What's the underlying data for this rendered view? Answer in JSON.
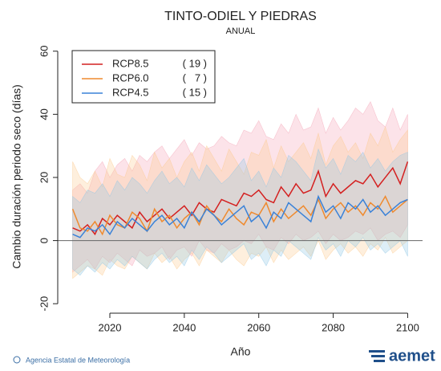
{
  "chart_data": {
    "type": "line",
    "title": "TINTO-ODIEL Y PIEDRAS",
    "subtitle": "ANUAL",
    "x_label": "Año",
    "y_label": "Cambio duración periodo seco (días)",
    "source": "Agencia Estatal de Meteorología",
    "logo": "aemet",
    "xlim": [
      2006,
      2104
    ],
    "ylim": [
      -23,
      64
    ],
    "xticks": [
      2020,
      2040,
      2060,
      2080,
      2100
    ],
    "yticks": [
      -20,
      0,
      20,
      40,
      60
    ],
    "zero_line": true,
    "x": [
      2010,
      2012,
      2014,
      2016,
      2018,
      2020,
      2022,
      2024,
      2026,
      2028,
      2030,
      2032,
      2034,
      2036,
      2038,
      2040,
      2042,
      2044,
      2046,
      2048,
      2050,
      2052,
      2054,
      2056,
      2058,
      2060,
      2062,
      2064,
      2066,
      2068,
      2070,
      2072,
      2074,
      2076,
      2078,
      2080,
      2082,
      2084,
      2086,
      2088,
      2090,
      2092,
      2094,
      2096,
      2098,
      2100
    ],
    "series": [
      {
        "name": "RCP8.5",
        "count_label": "( 19 )",
        "color": "#d42020",
        "band_color": "#f4a3b6",
        "values": [
          4,
          3,
          5,
          2,
          7,
          5,
          8,
          6,
          4,
          9,
          6,
          8,
          10,
          7,
          9,
          11,
          8,
          12,
          10,
          9,
          13,
          12,
          11,
          15,
          14,
          16,
          13,
          12,
          17,
          14,
          18,
          15,
          16,
          22,
          14,
          18,
          15,
          17,
          19,
          18,
          21,
          17,
          20,
          23,
          18,
          25
        ],
        "high": [
          16,
          18,
          15,
          22,
          25,
          20,
          24,
          26,
          22,
          27,
          25,
          28,
          30,
          26,
          29,
          32,
          27,
          31,
          29,
          30,
          33,
          31,
          30,
          35,
          34,
          38,
          33,
          32,
          37,
          34,
          40,
          35,
          36,
          42,
          34,
          39,
          35,
          38,
          42,
          40,
          44,
          38,
          36,
          42,
          35,
          40
        ],
        "low": [
          -10,
          -8,
          -6,
          -9,
          -5,
          -7,
          -4,
          -6,
          -8,
          -3,
          -5,
          -4,
          -2,
          -6,
          -3,
          -2,
          -5,
          0,
          -3,
          -4,
          -1,
          -3,
          -2,
          0,
          -1,
          2,
          -2,
          -3,
          1,
          -1,
          2,
          0,
          1,
          3,
          -1,
          2,
          0,
          1,
          3,
          2,
          4,
          0,
          2,
          3,
          1,
          5
        ]
      },
      {
        "name": "RCP6.0",
        "count_label": "(   7 )",
        "color": "#ef8a2e",
        "band_color": "#fbc98e",
        "values": [
          10,
          4,
          3,
          6,
          2,
          8,
          5,
          4,
          9,
          7,
          3,
          10,
          6,
          8,
          4,
          7,
          9,
          5,
          11,
          8,
          6,
          10,
          7,
          5,
          9,
          8,
          12,
          6,
          10,
          7,
          9,
          11,
          8,
          13,
          7,
          10,
          12,
          9,
          11,
          8,
          12,
          10,
          14,
          9,
          11,
          13
        ],
        "high": [
          25,
          20,
          18,
          22,
          17,
          26,
          21,
          20,
          27,
          24,
          19,
          28,
          23,
          26,
          20,
          25,
          28,
          22,
          30,
          26,
          22,
          29,
          25,
          21,
          28,
          27,
          32,
          23,
          30,
          25,
          28,
          31,
          26,
          34,
          24,
          30,
          33,
          28,
          31,
          26,
          34,
          30,
          36,
          28,
          32,
          35
        ],
        "low": [
          -12,
          -10,
          -8,
          -9,
          -11,
          -6,
          -8,
          -9,
          -5,
          -7,
          -9,
          -4,
          -7,
          -5,
          -9,
          -6,
          -4,
          -8,
          -3,
          -5,
          -7,
          -3,
          -6,
          -8,
          -4,
          -5,
          -2,
          -7,
          -3,
          -6,
          -4,
          -2,
          -5,
          0,
          -6,
          -3,
          -1,
          -4,
          -2,
          -5,
          -1,
          -3,
          1,
          -4,
          -2,
          0
        ]
      },
      {
        "name": "RCP4.5",
        "count_label": "( 15 )",
        "color": "#3a82d8",
        "band_color": "#8fc7e6",
        "values": [
          2,
          1,
          4,
          3,
          5,
          2,
          6,
          4,
          7,
          5,
          3,
          6,
          8,
          5,
          7,
          4,
          9,
          6,
          10,
          8,
          5,
          7,
          9,
          11,
          6,
          8,
          4,
          9,
          7,
          12,
          10,
          8,
          6,
          14,
          9,
          11,
          7,
          12,
          10,
          13,
          9,
          11,
          8,
          10,
          12,
          13
        ],
        "high": [
          14,
          12,
          16,
          15,
          18,
          14,
          19,
          16,
          20,
          18,
          15,
          19,
          22,
          18,
          20,
          17,
          23,
          19,
          24,
          21,
          18,
          20,
          23,
          26,
          19,
          22,
          17,
          23,
          20,
          27,
          25,
          22,
          19,
          29,
          23,
          26,
          21,
          27,
          25,
          28,
          23,
          26,
          22,
          25,
          27,
          28
        ],
        "low": [
          -9,
          -11,
          -8,
          -10,
          -7,
          -9,
          -6,
          -8,
          -5,
          -7,
          -9,
          -6,
          -4,
          -7,
          -5,
          -8,
          -3,
          -6,
          -2,
          -4,
          -7,
          -5,
          -3,
          -1,
          -6,
          -4,
          -8,
          -3,
          -5,
          0,
          -2,
          -4,
          -6,
          1,
          -3,
          -1,
          -5,
          0,
          -2,
          1,
          -3,
          -1,
          -4,
          -2,
          0,
          -5
        ]
      }
    ]
  }
}
